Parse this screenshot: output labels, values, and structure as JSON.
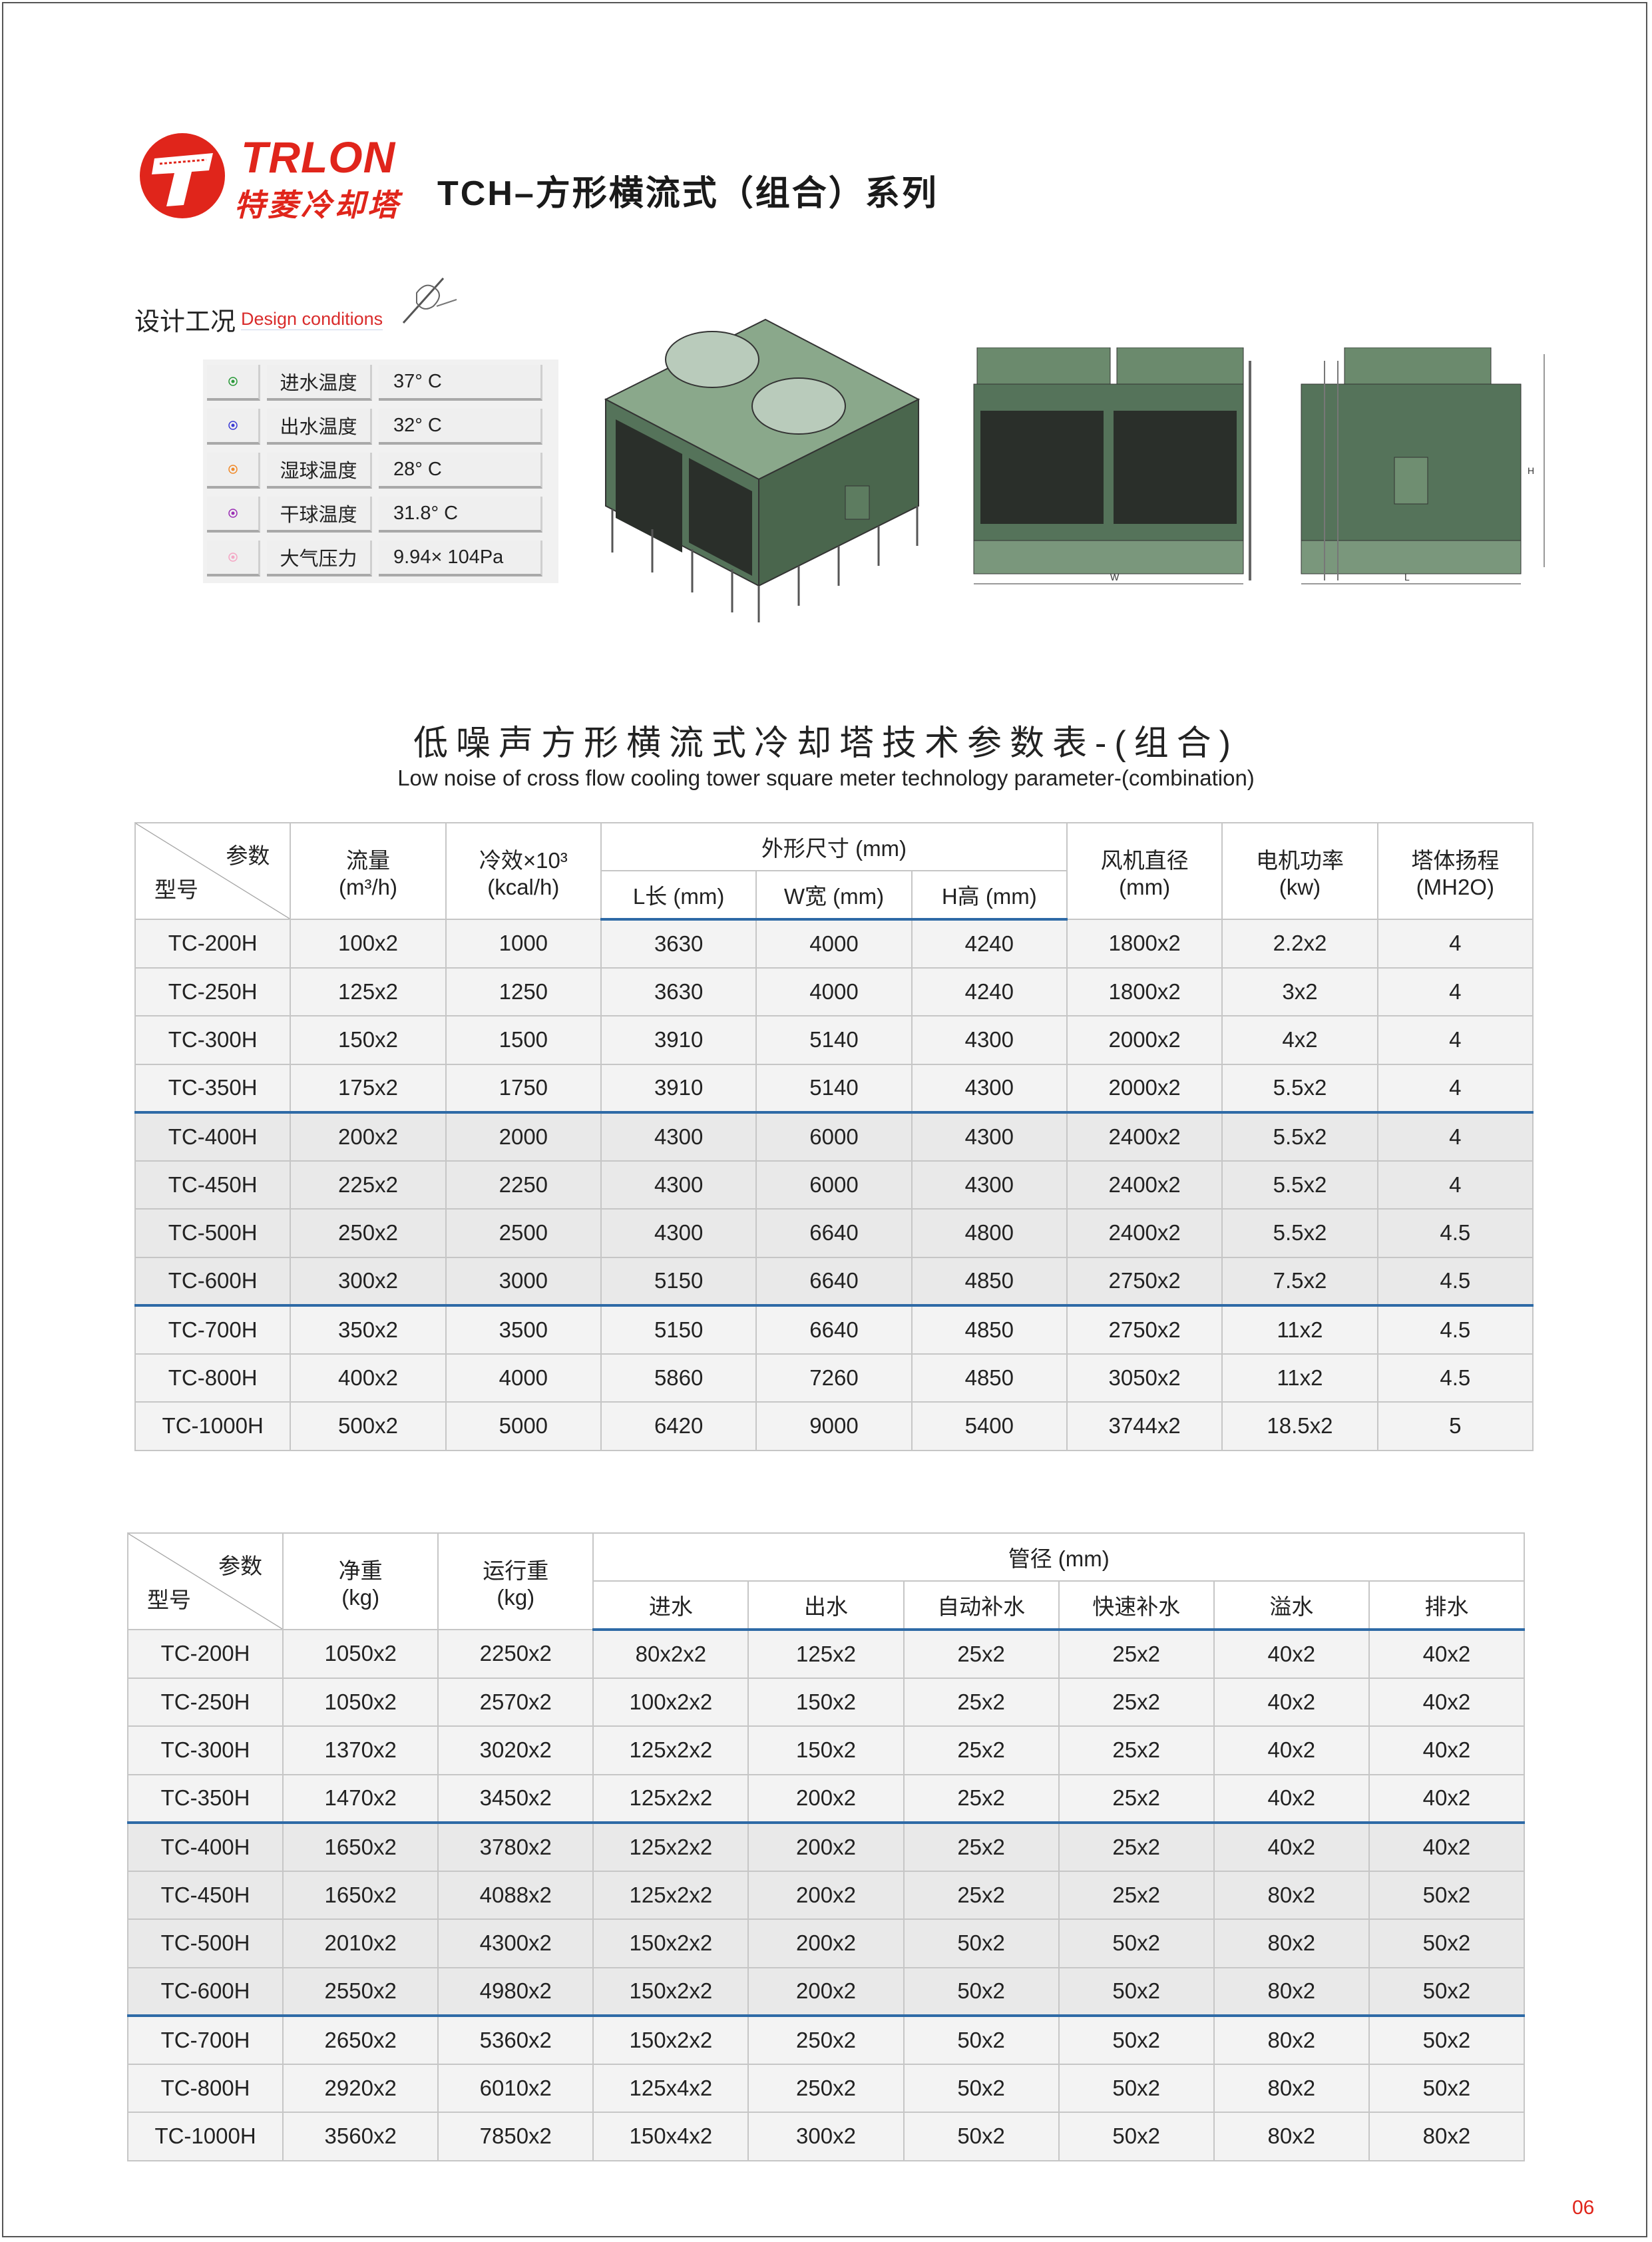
{
  "brand": {
    "name_en": "TRLON",
    "name_cn": "特菱冷却塔"
  },
  "header": {
    "title": "TCH–方形横流式（组合）系列"
  },
  "design_conditions": {
    "title_cn": "设计工况",
    "title_en": "Design conditions",
    "items": [
      {
        "icon": "target-icon",
        "color": "#2a9a3a",
        "label": "进水温度",
        "value": "37° C"
      },
      {
        "icon": "target-icon",
        "color": "#3b3bd6",
        "label": "出水温度",
        "value": "32° C"
      },
      {
        "icon": "target-icon",
        "color": "#f08a2a",
        "label": "湿球温度",
        "value": "28° C"
      },
      {
        "icon": "target-icon",
        "color": "#9b2fb5",
        "label": "干球温度",
        "value": "31.8° C"
      },
      {
        "icon": "target-icon",
        "color": "#f4a6c4",
        "label": "大气压力",
        "value": "9.94× 104Pa"
      }
    ]
  },
  "diagram_labels": {
    "w": "W",
    "l": "L",
    "h": "H"
  },
  "table_title": {
    "cn": "低噪声方形横流式冷却塔技术参数表-(组合)",
    "en": "Low noise  of cross flow cooling tower square meter technology parameter-(combination)"
  },
  "table1": {
    "header": {
      "param": "参数",
      "model": "型号",
      "flow": "流量",
      "flow_unit": "(m³/h)",
      "cooling": "冷效×10³",
      "cooling_unit": "(kcal/h)",
      "dims": "外形尺寸 (mm)",
      "l": "L长 (mm)",
      "w": "W宽 (mm)",
      "h": "H高 (mm)",
      "fan": "风机直径",
      "fan_unit": "(mm)",
      "motor": "电机功率",
      "motor_unit": "(kw)",
      "head": "塔体扬程",
      "head_unit": "(MH2O)"
    },
    "rows": [
      [
        "TC-200H",
        "100x2",
        "1000",
        "3630",
        "4000",
        "4240",
        "1800x2",
        "2.2x2",
        "4"
      ],
      [
        "TC-250H",
        "125x2",
        "1250",
        "3630",
        "4000",
        "4240",
        "1800x2",
        "3x2",
        "4"
      ],
      [
        "TC-300H",
        "150x2",
        "1500",
        "3910",
        "5140",
        "4300",
        "2000x2",
        "4x2",
        "4"
      ],
      [
        "TC-350H",
        "175x2",
        "1750",
        "3910",
        "5140",
        "4300",
        "2000x2",
        "5.5x2",
        "4"
      ],
      [
        "TC-400H",
        "200x2",
        "2000",
        "4300",
        "6000",
        "4300",
        "2400x2",
        "5.5x2",
        "4"
      ],
      [
        "TC-450H",
        "225x2",
        "2250",
        "4300",
        "6000",
        "4300",
        "2400x2",
        "5.5x2",
        "4"
      ],
      [
        "TC-500H",
        "250x2",
        "2500",
        "4300",
        "6640",
        "4800",
        "2400x2",
        "5.5x2",
        "4.5"
      ],
      [
        "TC-600H",
        "300x2",
        "3000",
        "5150",
        "6640",
        "4850",
        "2750x2",
        "7.5x2",
        "4.5"
      ],
      [
        "TC-700H",
        "350x2",
        "3500",
        "5150",
        "6640",
        "4850",
        "2750x2",
        "11x2",
        "4.5"
      ],
      [
        "TC-800H",
        "400x2",
        "4000",
        "5860",
        "7260",
        "4850",
        "3050x2",
        "11x2",
        "4.5"
      ],
      [
        "TC-1000H",
        "500x2",
        "5000",
        "6420",
        "9000",
        "5400",
        "3744x2",
        "18.5x2",
        "5"
      ]
    ]
  },
  "table2": {
    "header": {
      "param": "参数",
      "model": "型号",
      "net": "净重",
      "net_unit": "(kg)",
      "oper": "运行重",
      "oper_unit": "(kg)",
      "pipe": "管径 (mm)",
      "inlet": "进水",
      "outlet": "出水",
      "auto": "自动补水",
      "fast": "快速补水",
      "overflow": "溢水",
      "drain": "排水"
    },
    "rows": [
      [
        "TC-200H",
        "1050x2",
        "2250x2",
        "80x2x2",
        "125x2",
        "25x2",
        "25x2",
        "40x2",
        "40x2"
      ],
      [
        "TC-250H",
        "1050x2",
        "2570x2",
        "100x2x2",
        "150x2",
        "25x2",
        "25x2",
        "40x2",
        "40x2"
      ],
      [
        "TC-300H",
        "1370x2",
        "3020x2",
        "125x2x2",
        "150x2",
        "25x2",
        "25x2",
        "40x2",
        "40x2"
      ],
      [
        "TC-350H",
        "1470x2",
        "3450x2",
        "125x2x2",
        "200x2",
        "25x2",
        "25x2",
        "40x2",
        "40x2"
      ],
      [
        "TC-400H",
        "1650x2",
        "3780x2",
        "125x2x2",
        "200x2",
        "25x2",
        "25x2",
        "40x2",
        "40x2"
      ],
      [
        "TC-450H",
        "1650x2",
        "4088x2",
        "125x2x2",
        "200x2",
        "25x2",
        "25x2",
        "80x2",
        "50x2"
      ],
      [
        "TC-500H",
        "2010x2",
        "4300x2",
        "150x2x2",
        "200x2",
        "50x2",
        "50x2",
        "80x2",
        "50x2"
      ],
      [
        "TC-600H",
        "2550x2",
        "4980x2",
        "150x2x2",
        "200x2",
        "50x2",
        "50x2",
        "80x2",
        "50x2"
      ],
      [
        "TC-700H",
        "2650x2",
        "5360x2",
        "150x2x2",
        "250x2",
        "50x2",
        "50x2",
        "80x2",
        "50x2"
      ],
      [
        "TC-800H",
        "2920x2",
        "6010x2",
        "125x4x2",
        "250x2",
        "50x2",
        "50x2",
        "80x2",
        "50x2"
      ],
      [
        "TC-1000H",
        "3560x2",
        "7850x2",
        "150x4x2",
        "300x2",
        "50x2",
        "50x2",
        "80x2",
        "80x2"
      ]
    ]
  },
  "page_number": "06",
  "colors": {
    "brand_red": "#e0251b",
    "separator_blue": "#2e6aa6",
    "tower_green": "#4f6e52"
  }
}
